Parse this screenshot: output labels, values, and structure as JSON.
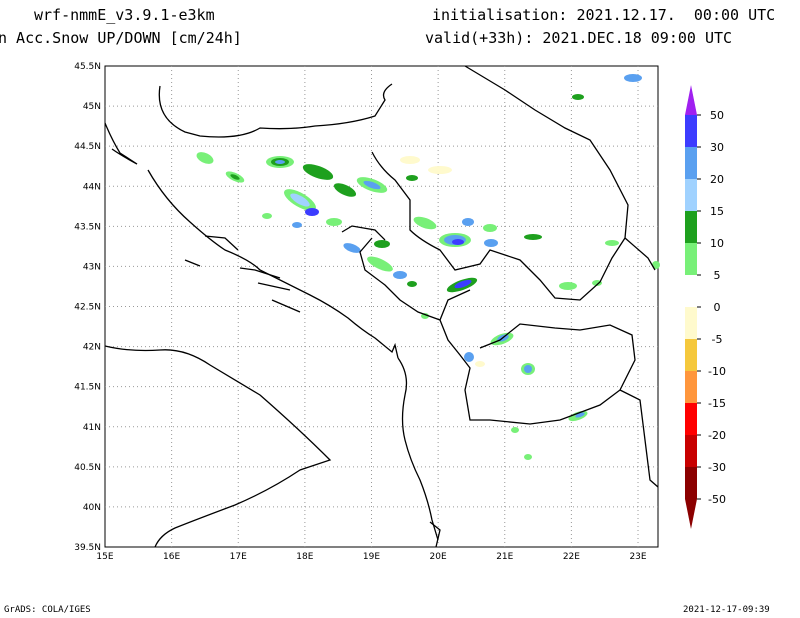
{
  "header": {
    "model": "wrf-nmmE_v3.9.1-e3km",
    "variable": "n Acc.Snow UP/DOWN [cm/24h]",
    "init": "initialisation: 2021.12.17.  00:00 UTC",
    "valid": "valid(+33h): 2021.DEC.18 09:00 UTC"
  },
  "footer": {
    "credit": "GrADS: COLA/IGES",
    "timestamp": "2021-12-17-09:39"
  },
  "map": {
    "lon_range": [
      15,
      23.3
    ],
    "lat_range": [
      39.5,
      45.5
    ],
    "lon_ticks": [
      "15E",
      "16E",
      "17E",
      "18E",
      "19E",
      "20E",
      "21E",
      "22E",
      "23E"
    ],
    "lat_ticks": [
      "39.5N",
      "40N",
      "40.5N",
      "41N",
      "41.5N",
      "42N",
      "42.5N",
      "43N",
      "43.5N",
      "44N",
      "44.5N",
      "45N",
      "45.5N"
    ],
    "grid": "dotted",
    "border_color": "#000000"
  },
  "colorbar": {
    "levels": [
      "50",
      "30",
      "20",
      "15",
      "10",
      "5",
      "0",
      "-5",
      "-10",
      "-15",
      "-20",
      "-30",
      "-50"
    ],
    "colors": [
      "#a020f0",
      "#3c3cff",
      "#5aa0f0",
      "#a0d2ff",
      "#1ea01e",
      "#78f078",
      "#ffffff",
      "#fffacd",
      "#f5c83c",
      "#ff963c",
      "#ff0000",
      "#c80000",
      "#8b0000"
    ]
  }
}
